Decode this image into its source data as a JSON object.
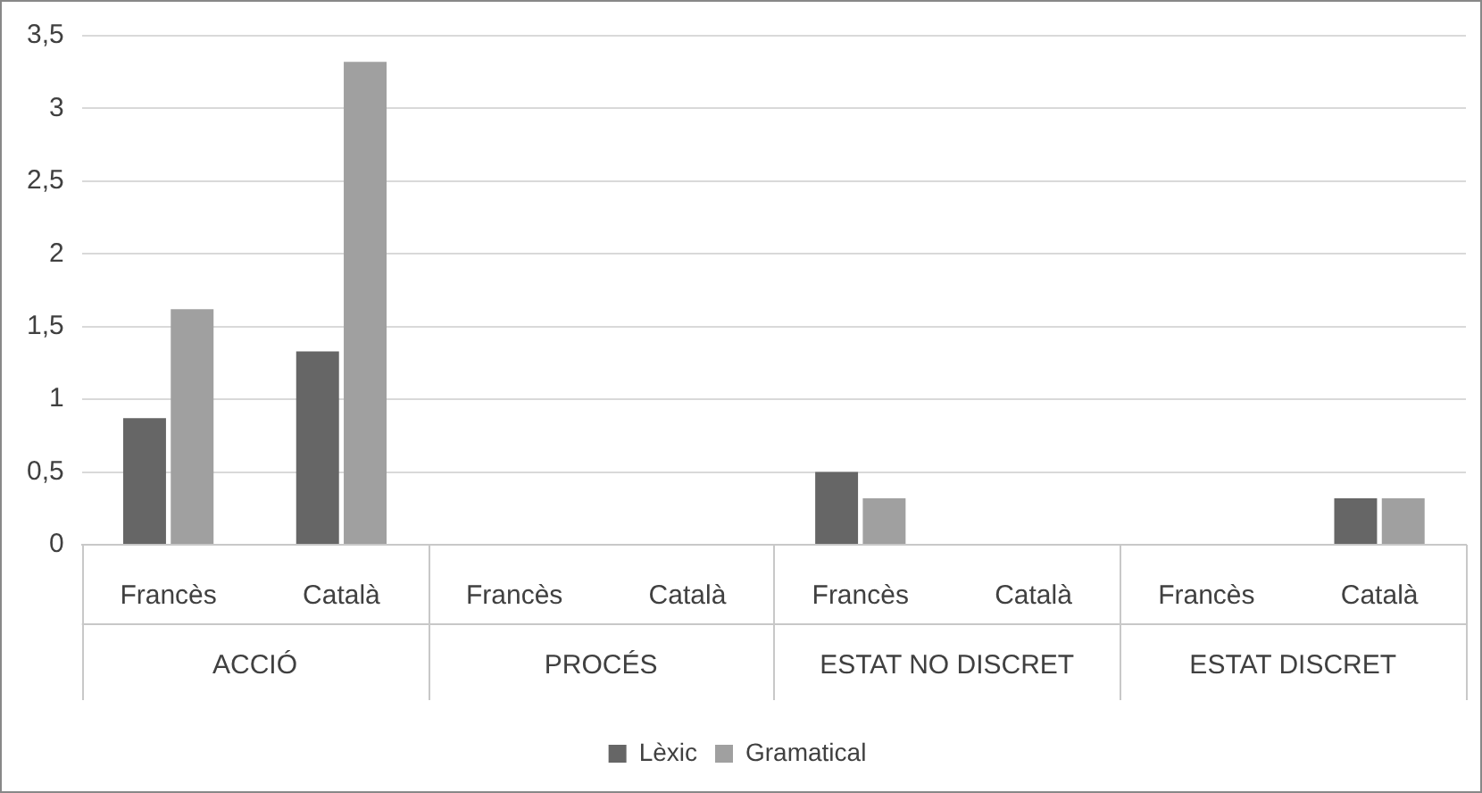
{
  "chart_data": {
    "type": "bar",
    "categories": [
      "Francès",
      "Català",
      "Francès",
      "Català",
      "Francès",
      "Català",
      "Francès",
      "Català"
    ],
    "annotations": [
      "ACCIÓ",
      "PROCÉS",
      "ESTAT NO DISCRET",
      "ESTAT DISCRET"
    ],
    "series": [
      {
        "name": "Lèxic",
        "color": "#666666",
        "values": [
          0.87,
          1.33,
          0,
          0,
          0.5,
          0,
          0,
          0.32
        ]
      },
      {
        "name": "Gramatical",
        "color": "#a0a0a0",
        "values": [
          1.62,
          3.32,
          0,
          0,
          0.32,
          0,
          0,
          0.32
        ]
      }
    ],
    "ylim": [
      0,
      3.5
    ],
    "yticks": [
      {
        "value": 0,
        "label": "0"
      },
      {
        "value": 0.5,
        "label": "0,5"
      },
      {
        "value": 1,
        "label": "1"
      },
      {
        "value": 1.5,
        "label": "1,5"
      },
      {
        "value": 2,
        "label": "2"
      },
      {
        "value": 2.5,
        "label": "2,5"
      },
      {
        "value": 3,
        "label": "3"
      },
      {
        "value": 3.5,
        "label": "3,5"
      }
    ],
    "grid": "y",
    "legend": "bottom"
  }
}
